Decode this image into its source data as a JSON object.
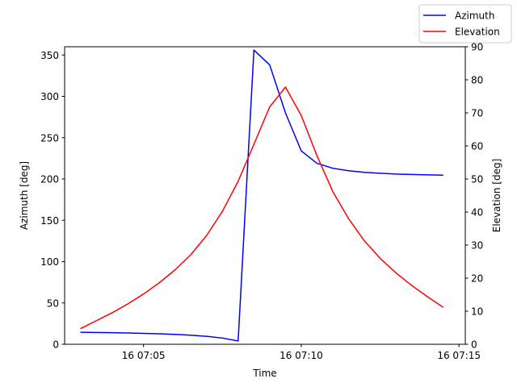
{
  "chart_data": {
    "type": "line",
    "xlabel": "Time",
    "x_ticks": [
      {
        "t": 5,
        "label": "16 07:05"
      },
      {
        "t": 10,
        "label": "16 07:10"
      },
      {
        "t": 15,
        "label": "16 07:15"
      }
    ],
    "xlim": [
      "16 07:02.5",
      "16 07:15.2"
    ],
    "axes": {
      "left": {
        "label": "Azimuth [deg]",
        "ylim": [
          0,
          360
        ],
        "ticks": [
          0,
          50,
          100,
          150,
          200,
          250,
          300,
          350
        ]
      },
      "right": {
        "label": "Elevation [deg]",
        "ylim": [
          0,
          90
        ],
        "ticks": [
          0,
          10,
          20,
          30,
          40,
          50,
          60,
          70,
          80,
          90
        ]
      }
    },
    "grid": false,
    "legend": "top-right",
    "series": [
      {
        "name": "Azimuth",
        "axis": "left",
        "color": "#0000ff",
        "x": [
          "07:03.0",
          "07:03.5",
          "07:04.0",
          "07:04.5",
          "07:05.0",
          "07:05.5",
          "07:06.0",
          "07:06.5",
          "07:07.0",
          "07:07.5",
          "07:08.0",
          "07:08.5",
          "07:09.0",
          "07:09.5",
          "07:10.0",
          "07:10.5",
          "07:11.0",
          "07:11.5",
          "07:12.0",
          "07:12.5",
          "07:13.0",
          "07:13.5",
          "07:14.0",
          "07:14.5"
        ],
        "values": [
          14.5,
          14.3,
          14.0,
          13.6,
          13.2,
          12.7,
          12.0,
          11.0,
          9.6,
          7.5,
          4.0,
          356,
          338,
          280,
          234,
          219,
          213,
          210,
          208,
          207,
          206,
          205.5,
          205,
          204.6
        ]
      },
      {
        "name": "Elevation",
        "axis": "right",
        "color": "#ff0000",
        "x": [
          "07:03.0",
          "07:03.5",
          "07:04.0",
          "07:04.5",
          "07:05.0",
          "07:05.5",
          "07:06.0",
          "07:06.5",
          "07:07.0",
          "07:07.5",
          "07:08.0",
          "07:08.5",
          "07:09.0",
          "07:09.5",
          "07:10.0",
          "07:10.5",
          "07:11.0",
          "07:11.5",
          "07:12.0",
          "07:12.5",
          "07:13.0",
          "07:13.5",
          "07:14.0",
          "07:14.5"
        ],
        "values": [
          4.7,
          7.1,
          9.5,
          12.2,
          15.2,
          18.6,
          22.5,
          27.1,
          32.9,
          40.2,
          49.3,
          60.5,
          71.8,
          77.8,
          69.2,
          57.0,
          46.2,
          38.0,
          31.3,
          26.0,
          21.6,
          17.8,
          14.4,
          11.2
        ]
      }
    ]
  }
}
